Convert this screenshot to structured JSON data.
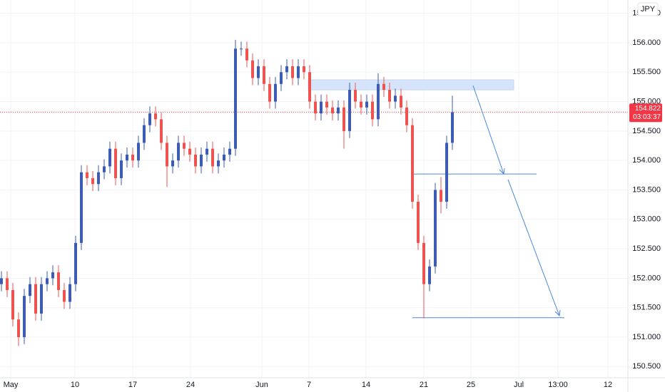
{
  "chart_data": {
    "type": "candlestick",
    "currency": "JPY",
    "up_color": "#3b5bb5",
    "down_color": "#ef5350",
    "xlim": [
      -0.25,
      109.75
    ],
    "xticks": [
      {
        "value": 1.625,
        "label": "May"
      },
      {
        "value": 12.875,
        "label": "10"
      },
      {
        "value": 23,
        "label": "17"
      },
      {
        "value": 33.125,
        "label": "24"
      },
      {
        "value": 45.625,
        "label": "Jun"
      },
      {
        "value": 53.875,
        "label": "7"
      },
      {
        "value": 63.875,
        "label": "14"
      },
      {
        "value": 74,
        "label": "21"
      },
      {
        "value": 82.25,
        "label": "25"
      },
      {
        "value": 90.625,
        "label": "Jul"
      },
      {
        "value": 97.5,
        "label": "13:00"
      },
      {
        "value": 106.25,
        "label": "12"
      }
    ],
    "ylim": [
      150.31,
      156.726
    ],
    "yticks": [
      {
        "value": 150.5,
        "label": "150.500"
      },
      {
        "value": 151,
        "label": "151.000"
      },
      {
        "value": 151.5,
        "label": "151.500"
      },
      {
        "value": 152,
        "label": "152.000"
      },
      {
        "value": 152.5,
        "label": "152.500"
      },
      {
        "value": 153,
        "label": "153.000"
      },
      {
        "value": 153.5,
        "label": "153.500"
      },
      {
        "value": 154,
        "label": "154.000"
      },
      {
        "value": 154.5,
        "label": "154.500"
      },
      {
        "value": 155,
        "label": "155.000"
      },
      {
        "value": 155.5,
        "label": "155.500"
      },
      {
        "value": 156,
        "label": "156.000"
      },
      {
        "value": 156.5,
        "label": "156.500"
      }
    ],
    "series": [
      {
        "open": [
          151.9,
          152.0,
          151.8,
          151.3,
          151.0,
          151.7,
          151.9,
          151.4,
          151.9,
          152.0,
          152.1,
          151.8,
          151.6,
          151.9,
          152.6,
          153.8,
          153.7,
          153.6,
          153.8,
          153.9,
          154.2,
          153.7,
          154.0,
          154.1,
          154.0,
          154.3,
          154.6,
          154.8,
          154.7,
          154.3,
          153.9,
          154.0,
          154.3,
          154.2,
          154.1,
          153.9,
          154.1,
          154.2,
          153.9,
          154.0,
          154.1,
          154.2,
          155.9,
          155.9,
          155.7,
          155.4,
          155.6,
          155.3,
          155.0,
          155.3,
          155.5,
          155.6,
          155.4,
          155.6,
          155.5,
          155.0,
          154.8,
          155.0,
          154.9,
          154.8,
          154.9,
          154.5,
          155.2,
          155.0,
          154.9,
          155.0,
          154.7,
          155.3,
          155.2,
          155.0,
          155.1,
          154.9,
          154.6,
          153.3,
          152.6,
          151.9,
          152.2,
          153.5,
          153.3,
          154.3
        ],
        "high": [
          152.12,
          152.12,
          151.92,
          151.42,
          151.82,
          152.02,
          152.02,
          152.02,
          152.12,
          152.22,
          152.22,
          151.92,
          152.02,
          152.72,
          153.92,
          153.92,
          153.82,
          153.92,
          154.02,
          154.32,
          154.32,
          154.12,
          154.22,
          154.22,
          154.42,
          154.72,
          154.92,
          154.92,
          154.82,
          154.42,
          154.12,
          154.42,
          154.42,
          154.32,
          154.22,
          154.22,
          154.32,
          154.32,
          154.12,
          154.22,
          154.32,
          156.05,
          156.02,
          156.02,
          155.82,
          155.72,
          155.72,
          155.42,
          155.42,
          155.62,
          155.72,
          155.72,
          155.72,
          155.72,
          155.62,
          155.12,
          155.12,
          155.12,
          155.02,
          155.02,
          155.02,
          155.32,
          155.32,
          155.12,
          155.12,
          155.12,
          155.48,
          155.42,
          155.32,
          155.22,
          155.22,
          155.02,
          154.72,
          153.42,
          152.72,
          152.32,
          153.62,
          153.72,
          154.42,
          155.1
        ],
        "low": [
          151.78,
          151.68,
          151.18,
          150.85,
          150.88,
          151.58,
          151.28,
          151.28,
          151.78,
          151.88,
          151.68,
          151.48,
          151.48,
          151.78,
          152.48,
          153.58,
          153.48,
          153.48,
          153.68,
          153.78,
          153.58,
          153.58,
          153.88,
          153.88,
          153.88,
          154.18,
          154.48,
          154.58,
          154.18,
          153.55,
          153.78,
          153.88,
          154.08,
          153.98,
          153.78,
          153.78,
          153.98,
          153.78,
          153.78,
          153.88,
          153.98,
          154.08,
          155.78,
          155.58,
          155.28,
          155.28,
          155.18,
          154.88,
          154.88,
          155.18,
          155.38,
          155.28,
          155.28,
          155.38,
          154.88,
          154.68,
          154.68,
          154.78,
          154.68,
          154.68,
          154.2,
          154.38,
          154.88,
          154.78,
          154.78,
          154.58,
          154.58,
          155.08,
          154.88,
          154.88,
          154.78,
          154.48,
          153.18,
          152.48,
          151.32,
          151.78,
          152.08,
          153.1,
          153.18,
          154.18
        ],
        "close": [
          152.0,
          151.8,
          151.3,
          151.0,
          151.7,
          151.9,
          151.4,
          151.9,
          152.0,
          152.1,
          151.8,
          151.6,
          151.9,
          152.6,
          153.8,
          153.7,
          153.6,
          153.8,
          153.9,
          154.2,
          153.7,
          154.0,
          154.1,
          154.0,
          154.3,
          154.6,
          154.8,
          154.7,
          154.3,
          153.9,
          154.0,
          154.3,
          154.2,
          154.1,
          153.9,
          154.1,
          154.2,
          153.9,
          154.0,
          154.1,
          154.2,
          155.9,
          155.9,
          155.7,
          155.4,
          155.6,
          155.3,
          155.0,
          155.3,
          155.5,
          155.6,
          155.4,
          155.6,
          155.5,
          155.0,
          154.8,
          155.0,
          154.9,
          154.8,
          154.9,
          154.5,
          155.2,
          155.0,
          154.9,
          155.0,
          154.7,
          155.3,
          155.2,
          155.0,
          155.1,
          154.9,
          154.6,
          153.3,
          152.6,
          151.9,
          152.2,
          153.5,
          153.3,
          154.3,
          154.82
        ]
      }
    ],
    "last_price": 154.822,
    "countdown": "03:03:37",
    "zone": [
      155.2,
      155.37
    ],
    "levels": [
      153.77,
      151.33
    ]
  }
}
